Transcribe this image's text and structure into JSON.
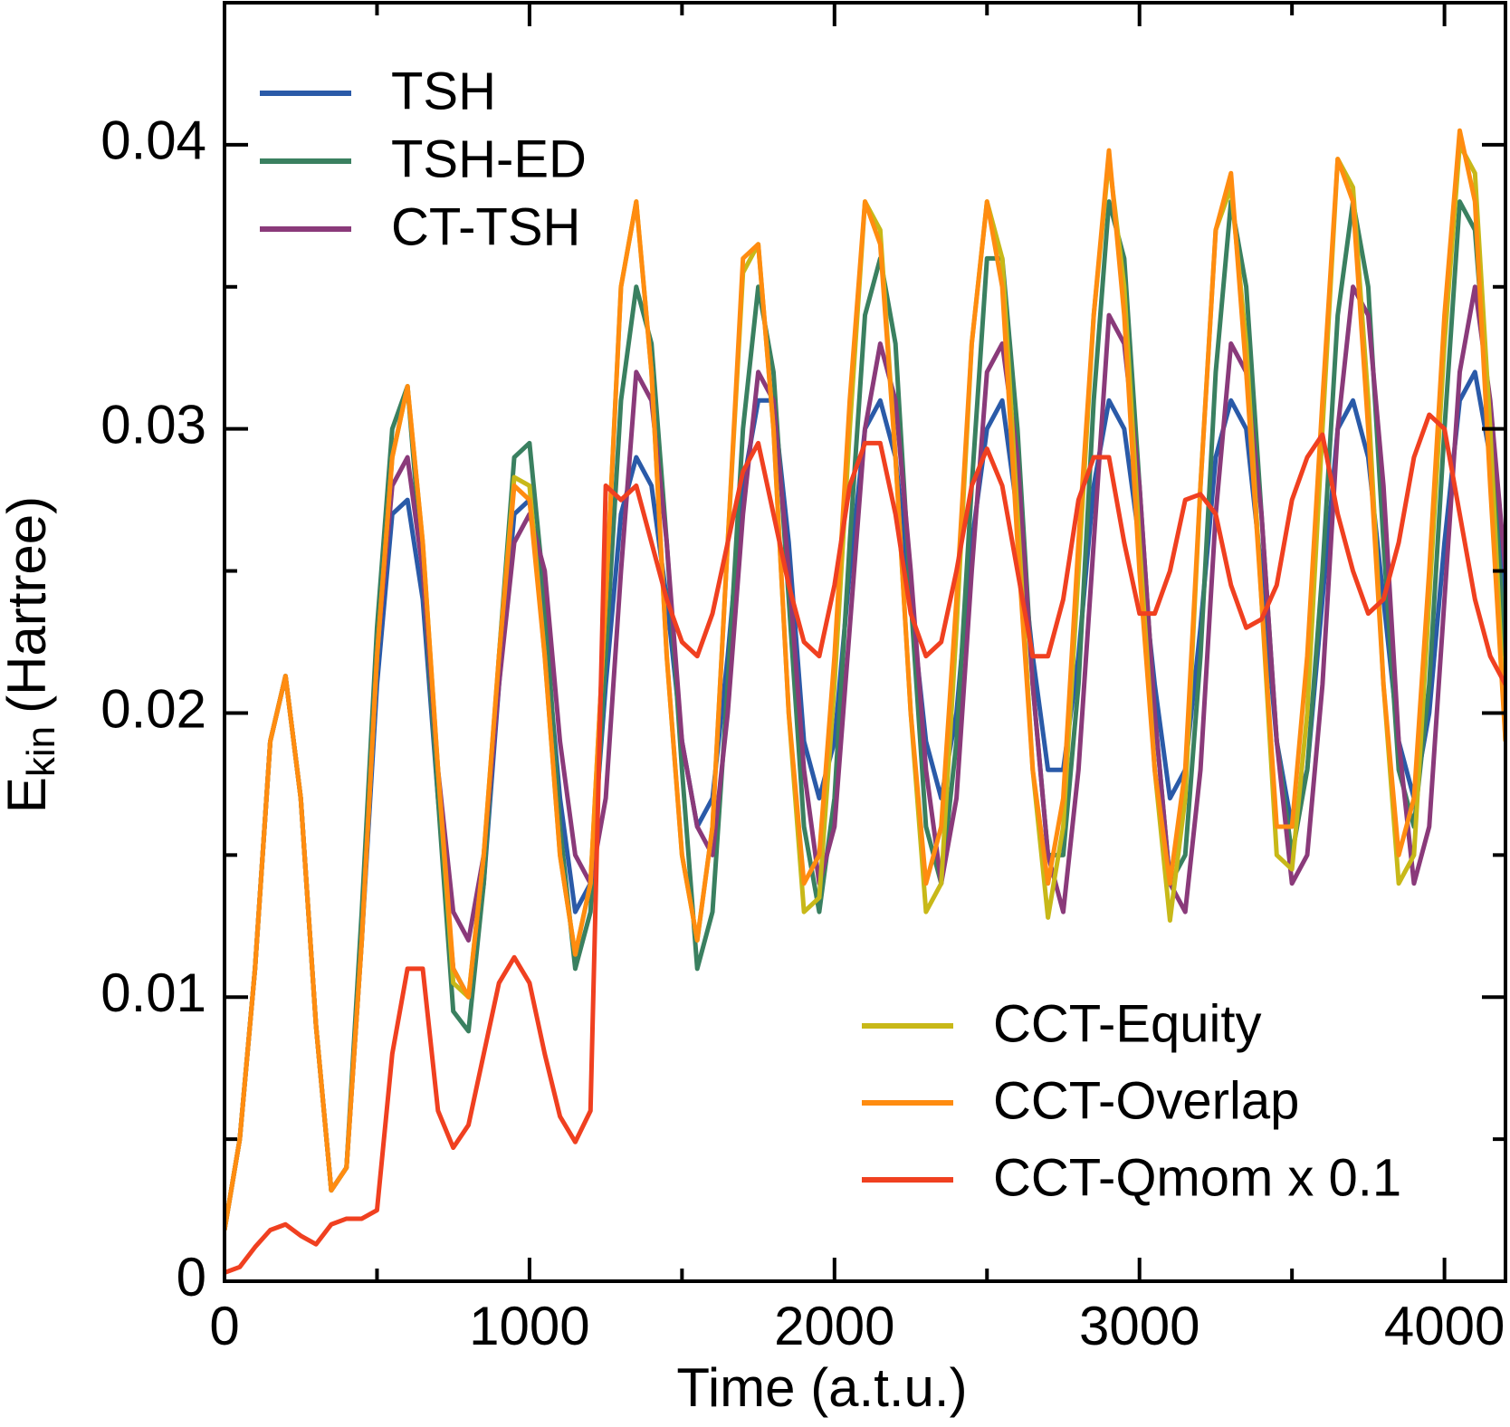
{
  "chart_data": {
    "type": "line",
    "xlabel": "Time (a.t.u.)",
    "ylabel": "E",
    "ylabel_sub": "kin",
    "ylabel_rest": "(Hartree)",
    "xlim": [
      0,
      4200
    ],
    "ylim": [
      0,
      0.045
    ],
    "xticks": [
      0,
      1000,
      2000,
      3000,
      4000
    ],
    "yticks": [
      0,
      0.01,
      0.02,
      0.03,
      0.04
    ],
    "xticks_minor": [
      500,
      1500,
      2500,
      3500
    ],
    "yticks_minor": [
      0.005,
      0.015,
      0.025,
      0.035
    ],
    "x": [
      0,
      50,
      100,
      150,
      200,
      250,
      300,
      350,
      400,
      450,
      500,
      550,
      600,
      650,
      700,
      750,
      800,
      850,
      900,
      950,
      1000,
      1050,
      1100,
      1150,
      1200,
      1250,
      1300,
      1350,
      1400,
      1450,
      1500,
      1550,
      1600,
      1650,
      1700,
      1750,
      1800,
      1850,
      1900,
      1950,
      2000,
      2050,
      2100,
      2150,
      2200,
      2250,
      2300,
      2350,
      2400,
      2450,
      2500,
      2550,
      2600,
      2650,
      2700,
      2750,
      2800,
      2850,
      2900,
      2950,
      3000,
      3050,
      3100,
      3150,
      3200,
      3250,
      3300,
      3350,
      3400,
      3450,
      3500,
      3550,
      3600,
      3650,
      3700,
      3750,
      3800,
      3850,
      3900,
      3950,
      4000,
      4050,
      4100,
      4150,
      4200
    ],
    "series": [
      {
        "name": "TSH",
        "color": "#2a5aa8",
        "legend": "upper left",
        "values": [
          0.0018,
          0.005,
          0.011,
          0.019,
          0.0213,
          0.017,
          0.009,
          0.0032,
          0.004,
          0.012,
          0.021,
          0.027,
          0.0275,
          0.024,
          0.017,
          0.011,
          0.01,
          0.014,
          0.021,
          0.027,
          0.0275,
          0.023,
          0.017,
          0.013,
          0.014,
          0.021,
          0.027,
          0.029,
          0.028,
          0.024,
          0.019,
          0.016,
          0.017,
          0.022,
          0.028,
          0.031,
          0.031,
          0.026,
          0.019,
          0.017,
          0.019,
          0.025,
          0.03,
          0.031,
          0.029,
          0.024,
          0.019,
          0.017,
          0.02,
          0.026,
          0.03,
          0.031,
          0.027,
          0.022,
          0.018,
          0.018,
          0.022,
          0.028,
          0.031,
          0.03,
          0.026,
          0.021,
          0.017,
          0.018,
          0.023,
          0.029,
          0.031,
          0.03,
          0.025,
          0.019,
          0.016,
          0.018,
          0.024,
          0.03,
          0.031,
          0.029,
          0.024,
          0.019,
          0.017,
          0.02,
          0.026,
          0.031,
          0.032,
          0.029,
          0.024
        ]
      },
      {
        "name": "TSH-ED",
        "color": "#3a8060",
        "legend": "upper left",
        "values": [
          0.0018,
          0.005,
          0.011,
          0.019,
          0.0213,
          0.017,
          0.009,
          0.0032,
          0.004,
          0.013,
          0.023,
          0.03,
          0.0315,
          0.025,
          0.017,
          0.0095,
          0.0088,
          0.014,
          0.022,
          0.029,
          0.0295,
          0.024,
          0.016,
          0.011,
          0.013,
          0.022,
          0.031,
          0.035,
          0.033,
          0.026,
          0.018,
          0.011,
          0.013,
          0.021,
          0.03,
          0.035,
          0.032,
          0.024,
          0.016,
          0.013,
          0.017,
          0.026,
          0.034,
          0.036,
          0.033,
          0.024,
          0.016,
          0.014,
          0.019,
          0.028,
          0.036,
          0.036,
          0.03,
          0.021,
          0.015,
          0.015,
          0.021,
          0.031,
          0.038,
          0.036,
          0.028,
          0.02,
          0.014,
          0.015,
          0.022,
          0.032,
          0.038,
          0.035,
          0.027,
          0.019,
          0.015,
          0.018,
          0.025,
          0.034,
          0.038,
          0.035,
          0.026,
          0.018,
          0.016,
          0.021,
          0.03,
          0.038,
          0.037,
          0.03,
          0.022
        ]
      },
      {
        "name": "CT-TSH",
        "color": "#8a3a7a",
        "legend": "upper left",
        "values": [
          0.0018,
          0.005,
          0.011,
          0.019,
          0.0213,
          0.017,
          0.009,
          0.0032,
          0.004,
          0.012,
          0.022,
          0.028,
          0.029,
          0.025,
          0.018,
          0.013,
          0.012,
          0.015,
          0.021,
          0.026,
          0.027,
          0.025,
          0.019,
          0.015,
          0.014,
          0.017,
          0.025,
          0.032,
          0.031,
          0.026,
          0.019,
          0.016,
          0.015,
          0.02,
          0.027,
          0.032,
          0.031,
          0.025,
          0.018,
          0.014,
          0.016,
          0.023,
          0.03,
          0.033,
          0.031,
          0.025,
          0.018,
          0.014,
          0.017,
          0.025,
          0.032,
          0.033,
          0.029,
          0.021,
          0.015,
          0.013,
          0.018,
          0.026,
          0.034,
          0.033,
          0.028,
          0.02,
          0.014,
          0.013,
          0.018,
          0.027,
          0.033,
          0.032,
          0.027,
          0.019,
          0.014,
          0.015,
          0.021,
          0.03,
          0.035,
          0.034,
          0.028,
          0.019,
          0.014,
          0.016,
          0.024,
          0.032,
          0.035,
          0.031,
          0.025
        ]
      },
      {
        "name": "CCT-Equity",
        "color": "#c8b818",
        "legend": "lower right",
        "values": [
          0.0018,
          0.005,
          0.011,
          0.019,
          0.0213,
          0.017,
          0.009,
          0.0032,
          0.004,
          0.012,
          0.022,
          0.029,
          0.0315,
          0.026,
          0.018,
          0.0105,
          0.01,
          0.015,
          0.022,
          0.0283,
          0.028,
          0.022,
          0.015,
          0.0115,
          0.014,
          0.024,
          0.035,
          0.038,
          0.032,
          0.022,
          0.015,
          0.012,
          0.016,
          0.026,
          0.0355,
          0.0365,
          0.03,
          0.02,
          0.013,
          0.0135,
          0.021,
          0.03,
          0.038,
          0.037,
          0.029,
          0.02,
          0.013,
          0.014,
          0.023,
          0.033,
          0.038,
          0.036,
          0.027,
          0.018,
          0.0128,
          0.016,
          0.025,
          0.034,
          0.0395,
          0.035,
          0.026,
          0.018,
          0.0127,
          0.017,
          0.028,
          0.037,
          0.0385,
          0.033,
          0.024,
          0.015,
          0.0145,
          0.02,
          0.03,
          0.0395,
          0.0385,
          0.031,
          0.021,
          0.014,
          0.015,
          0.024,
          0.033,
          0.04,
          0.039,
          0.03,
          0.019
        ]
      },
      {
        "name": "CCT-Overlap",
        "color": "#ff8c10",
        "legend": "lower right",
        "values": [
          0.0018,
          0.005,
          0.011,
          0.019,
          0.0213,
          0.017,
          0.009,
          0.0032,
          0.004,
          0.012,
          0.022,
          0.029,
          0.0315,
          0.026,
          0.018,
          0.011,
          0.01,
          0.015,
          0.022,
          0.028,
          0.0275,
          0.022,
          0.015,
          0.0115,
          0.014,
          0.024,
          0.035,
          0.038,
          0.032,
          0.022,
          0.015,
          0.012,
          0.016,
          0.026,
          0.036,
          0.0365,
          0.03,
          0.02,
          0.014,
          0.015,
          0.022,
          0.031,
          0.038,
          0.0365,
          0.029,
          0.02,
          0.014,
          0.016,
          0.024,
          0.033,
          0.038,
          0.035,
          0.026,
          0.018,
          0.014,
          0.017,
          0.026,
          0.034,
          0.0398,
          0.034,
          0.025,
          0.018,
          0.014,
          0.018,
          0.028,
          0.037,
          0.039,
          0.032,
          0.024,
          0.016,
          0.016,
          0.022,
          0.031,
          0.0395,
          0.038,
          0.03,
          0.021,
          0.015,
          0.017,
          0.025,
          0.034,
          0.0405,
          0.038,
          0.028,
          0.019
        ]
      },
      {
        "name": "CCT-Qmom x 0.1",
        "color": "#f04020",
        "legend": "lower right",
        "values": [
          0.0003,
          0.0005,
          0.0012,
          0.0018,
          0.002,
          0.0016,
          0.0013,
          0.002,
          0.0022,
          0.0022,
          0.0025,
          0.008,
          0.011,
          0.011,
          0.006,
          0.0047,
          0.0055,
          0.008,
          0.0105,
          0.0114,
          0.0105,
          0.008,
          0.0058,
          0.0049,
          0.006,
          0.028,
          0.0275,
          0.028,
          0.026,
          0.024,
          0.0225,
          0.022,
          0.0235,
          0.026,
          0.0285,
          0.0295,
          0.027,
          0.0245,
          0.0225,
          0.022,
          0.0245,
          0.028,
          0.0295,
          0.0295,
          0.027,
          0.0235,
          0.022,
          0.0225,
          0.025,
          0.028,
          0.0293,
          0.028,
          0.025,
          0.022,
          0.022,
          0.024,
          0.0275,
          0.029,
          0.029,
          0.026,
          0.0235,
          0.0235,
          0.025,
          0.0275,
          0.0277,
          0.027,
          0.0245,
          0.023,
          0.0233,
          0.0245,
          0.0275,
          0.029,
          0.0298,
          0.027,
          0.025,
          0.0235,
          0.024,
          0.026,
          0.029,
          0.0305,
          0.03,
          0.027,
          0.024,
          0.022,
          0.021
        ]
      }
    ]
  }
}
